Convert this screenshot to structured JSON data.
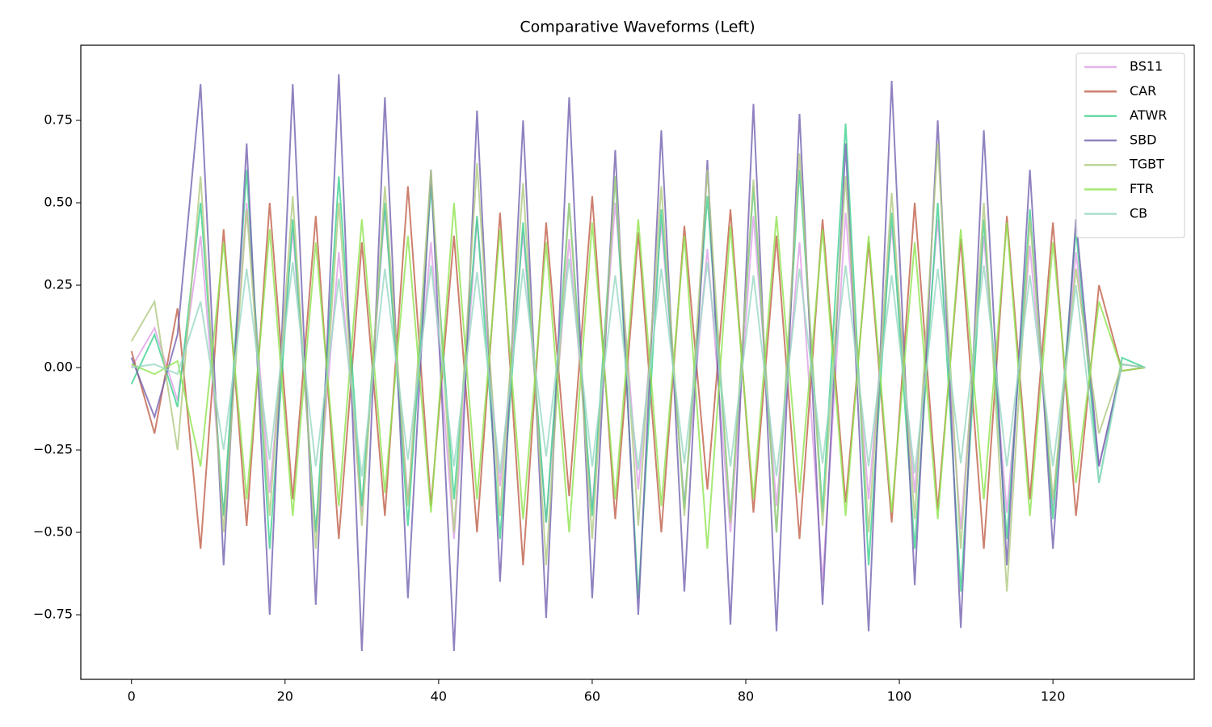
{
  "chart_data": {
    "type": "line",
    "title": "Comparative Waveforms (Left)",
    "x": [
      0,
      3,
      6,
      9,
      12,
      15,
      18,
      21,
      24,
      27,
      30,
      33,
      36,
      39,
      42,
      45,
      48,
      51,
      54,
      57,
      60,
      63,
      66,
      69,
      72,
      75,
      78,
      81,
      84,
      87,
      90,
      93,
      96,
      99,
      102,
      105,
      108,
      111,
      114,
      117,
      120,
      123,
      126,
      129,
      132
    ],
    "series": [
      {
        "name": "BS11",
        "color": "#dea0e6",
        "values": [
          0,
          0.12,
          -0.1,
          0.4,
          -0.45,
          0.5,
          -0.38,
          0.42,
          -0.5,
          0.35,
          -0.44,
          0.48,
          -0.4,
          0.38,
          -0.52,
          0.45,
          -0.36,
          0.41,
          -0.47,
          0.39,
          -0.43,
          0.5,
          -0.37,
          0.44,
          -0.41,
          0.36,
          -0.5,
          0.46,
          -0.42,
          0.38,
          -0.65,
          0.47,
          -0.4,
          0.43,
          -0.38,
          0.45,
          -0.49,
          0.4,
          -0.44,
          0.37,
          -0.42,
          0.35,
          -0.3,
          0.01,
          0
        ]
      },
      {
        "name": "CAR",
        "color": "#c0604a",
        "values": [
          0.05,
          -0.2,
          0.18,
          -0.55,
          0.42,
          -0.48,
          0.5,
          -0.4,
          0.46,
          -0.52,
          0.38,
          -0.45,
          0.55,
          -0.42,
          0.4,
          -0.5,
          0.47,
          -0.6,
          0.44,
          -0.39,
          0.52,
          -0.46,
          0.41,
          -0.5,
          0.43,
          -0.37,
          0.48,
          -0.44,
          0.4,
          -0.52,
          0.45,
          -0.41,
          0.38,
          -0.47,
          0.5,
          -0.43,
          0.39,
          -0.55,
          0.46,
          -0.4,
          0.44,
          -0.45,
          0.25,
          -0.01,
          0
        ]
      },
      {
        "name": "ATWR",
        "color": "#3dd18e",
        "values": [
          -0.05,
          0.1,
          -0.12,
          0.5,
          -0.45,
          0.6,
          -0.55,
          0.45,
          -0.5,
          0.58,
          -0.42,
          0.5,
          -0.48,
          0.55,
          -0.4,
          0.46,
          -0.52,
          0.44,
          -0.47,
          0.5,
          -0.45,
          0.58,
          -0.7,
          0.48,
          -0.43,
          0.52,
          -0.46,
          0.55,
          -0.5,
          0.6,
          -0.44,
          0.74,
          -0.6,
          0.47,
          -0.55,
          0.5,
          -0.68,
          0.45,
          -0.52,
          0.48,
          -0.46,
          0.42,
          -0.35,
          0.03,
          0
        ]
      },
      {
        "name": "SBD",
        "color": "#7463b0",
        "values": [
          0.03,
          -0.15,
          0.1,
          0.86,
          -0.6,
          0.68,
          -0.75,
          0.86,
          -0.72,
          0.89,
          -0.86,
          0.82,
          -0.7,
          0.6,
          -0.86,
          0.78,
          -0.65,
          0.75,
          -0.76,
          0.82,
          -0.7,
          0.66,
          -0.75,
          0.72,
          -0.68,
          0.63,
          -0.78,
          0.8,
          -0.8,
          0.77,
          -0.72,
          0.68,
          -0.8,
          0.87,
          -0.66,
          0.75,
          -0.79,
          0.72,
          -0.6,
          0.6,
          -0.55,
          0.45,
          -0.3,
          0.01,
          0
        ]
      },
      {
        "name": "TGBT",
        "color": "#b0c982",
        "values": [
          0.08,
          0.2,
          -0.25,
          0.58,
          -0.5,
          0.48,
          -0.45,
          0.52,
          -0.55,
          0.5,
          -0.48,
          0.55,
          -0.42,
          0.6,
          -0.5,
          0.62,
          -0.45,
          0.56,
          -0.6,
          0.5,
          -0.52,
          0.58,
          -0.48,
          0.55,
          -0.45,
          0.6,
          -0.47,
          0.57,
          -0.5,
          0.65,
          -0.48,
          0.58,
          -0.5,
          0.53,
          -0.46,
          0.68,
          -0.55,
          0.5,
          -0.68,
          0.45,
          -0.4,
          0.3,
          -0.2,
          0.01,
          0
        ]
      },
      {
        "name": "FTR",
        "color": "#90e450",
        "values": [
          0.01,
          -0.02,
          0.02,
          -0.3,
          0.38,
          -0.4,
          0.42,
          -0.45,
          0.38,
          -0.42,
          0.45,
          -0.38,
          0.4,
          -0.44,
          0.5,
          -0.4,
          0.42,
          -0.46,
          0.38,
          -0.5,
          0.44,
          -0.4,
          0.45,
          -0.42,
          0.4,
          -0.55,
          0.43,
          -0.4,
          0.46,
          -0.38,
          0.42,
          -0.45,
          0.4,
          -0.44,
          0.38,
          -0.46,
          0.42,
          -0.4,
          0.44,
          -0.45,
          0.38,
          -0.35,
          0.2,
          -0.01,
          0
        ]
      },
      {
        "name": "CB",
        "color": "#9ad8c4",
        "values": [
          0,
          0.01,
          -0.02,
          0.2,
          -0.25,
          0.3,
          -0.28,
          0.32,
          -0.3,
          0.27,
          -0.33,
          0.3,
          -0.28,
          0.31,
          -0.3,
          0.29,
          -0.32,
          0.3,
          -0.27,
          0.33,
          -0.3,
          0.28,
          -0.31,
          0.3,
          -0.29,
          0.32,
          -0.3,
          0.28,
          -0.33,
          0.3,
          -0.29,
          0.31,
          -0.3,
          0.28,
          -0.32,
          0.3,
          -0.29,
          0.31,
          -0.3,
          0.28,
          -0.3,
          0.25,
          -0.35,
          0.01,
          0
        ]
      }
    ],
    "xlim": [
      -6.6,
      138.4
    ],
    "xticks": [
      0,
      20,
      40,
      60,
      80,
      100,
      120
    ],
    "ylim": [
      -0.946,
      0.978
    ],
    "yticks": [
      {
        "value": -0.75,
        "label": "−0.75"
      },
      {
        "value": -0.5,
        "label": "−0.50"
      },
      {
        "value": -0.25,
        "label": "−0.25"
      },
      {
        "value": 0,
        "label": "0.00"
      },
      {
        "value": 0.25,
        "label": "0.25"
      },
      {
        "value": 0.5,
        "label": "0.50"
      },
      {
        "value": 0.75,
        "label": "0.75"
      }
    ],
    "legend": "upper right"
  }
}
